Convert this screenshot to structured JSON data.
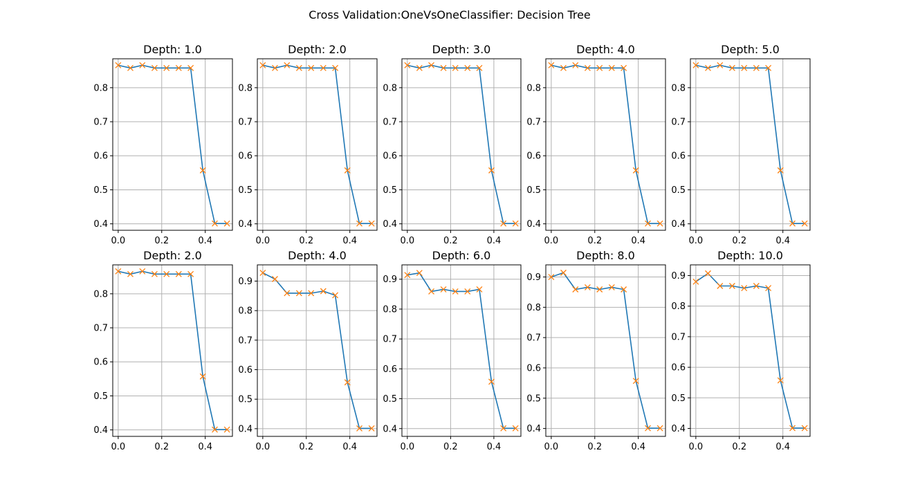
{
  "figure": {
    "title": "Cross Validation:OneVsOneClassifier: Decision Tree",
    "line_color": "#1f77b4",
    "marker_color": "#ff7f0e",
    "marker": "x",
    "grid_color": "#b0b0b0"
  },
  "chart_data": [
    {
      "type": "line",
      "title": "Depth: 1.0",
      "grid": true,
      "xlim": [
        -0.025,
        0.525
      ],
      "ylim": [
        0.381,
        0.885
      ],
      "xticks": [
        0.0,
        0.2,
        0.4
      ],
      "xtick_labels": [
        "0.0",
        "0.2",
        "0.4"
      ],
      "yticks": [
        0.4,
        0.5,
        0.6,
        0.7,
        0.8
      ],
      "ytick_labels": [
        "0.4",
        "0.5",
        "0.6",
        "0.7",
        "0.8"
      ],
      "x": [
        0.0,
        0.056,
        0.111,
        0.167,
        0.222,
        0.278,
        0.333,
        0.389,
        0.444,
        0.5
      ],
      "y": [
        0.866,
        0.858,
        0.866,
        0.858,
        0.858,
        0.858,
        0.858,
        0.557,
        0.401,
        0.401
      ]
    },
    {
      "type": "line",
      "title": "Depth: 2.0",
      "grid": true,
      "xlim": [
        -0.025,
        0.525
      ],
      "ylim": [
        0.381,
        0.885
      ],
      "xticks": [
        0.0,
        0.2,
        0.4
      ],
      "xtick_labels": [
        "0.0",
        "0.2",
        "0.4"
      ],
      "yticks": [
        0.4,
        0.5,
        0.6,
        0.7,
        0.8
      ],
      "ytick_labels": [
        "0.4",
        "0.5",
        "0.6",
        "0.7",
        "0.8"
      ],
      "x": [
        0.0,
        0.056,
        0.111,
        0.167,
        0.222,
        0.278,
        0.333,
        0.389,
        0.444,
        0.5
      ],
      "y": [
        0.866,
        0.858,
        0.866,
        0.858,
        0.858,
        0.858,
        0.858,
        0.557,
        0.401,
        0.401
      ]
    },
    {
      "type": "line",
      "title": "Depth: 3.0",
      "grid": true,
      "xlim": [
        -0.025,
        0.525
      ],
      "ylim": [
        0.381,
        0.885
      ],
      "xticks": [
        0.0,
        0.2,
        0.4
      ],
      "xtick_labels": [
        "0.0",
        "0.2",
        "0.4"
      ],
      "yticks": [
        0.4,
        0.5,
        0.6,
        0.7,
        0.8
      ],
      "ytick_labels": [
        "0.4",
        "0.5",
        "0.6",
        "0.7",
        "0.8"
      ],
      "x": [
        0.0,
        0.056,
        0.111,
        0.167,
        0.222,
        0.278,
        0.333,
        0.389,
        0.444,
        0.5
      ],
      "y": [
        0.866,
        0.858,
        0.866,
        0.858,
        0.858,
        0.858,
        0.858,
        0.557,
        0.401,
        0.401
      ]
    },
    {
      "type": "line",
      "title": "Depth: 4.0",
      "grid": true,
      "xlim": [
        -0.025,
        0.525
      ],
      "ylim": [
        0.381,
        0.885
      ],
      "xticks": [
        0.0,
        0.2,
        0.4
      ],
      "xtick_labels": [
        "0.0",
        "0.2",
        "0.4"
      ],
      "yticks": [
        0.4,
        0.5,
        0.6,
        0.7,
        0.8
      ],
      "ytick_labels": [
        "0.4",
        "0.5",
        "0.6",
        "0.7",
        "0.8"
      ],
      "x": [
        0.0,
        0.056,
        0.111,
        0.167,
        0.222,
        0.278,
        0.333,
        0.389,
        0.444,
        0.5
      ],
      "y": [
        0.866,
        0.858,
        0.866,
        0.858,
        0.858,
        0.858,
        0.858,
        0.557,
        0.401,
        0.401
      ]
    },
    {
      "type": "line",
      "title": "Depth: 5.0",
      "grid": true,
      "xlim": [
        -0.025,
        0.525
      ],
      "ylim": [
        0.381,
        0.885
      ],
      "xticks": [
        0.0,
        0.2,
        0.4
      ],
      "xtick_labels": [
        "0.0",
        "0.2",
        "0.4"
      ],
      "yticks": [
        0.4,
        0.5,
        0.6,
        0.7,
        0.8
      ],
      "ytick_labels": [
        "0.4",
        "0.5",
        "0.6",
        "0.7",
        "0.8"
      ],
      "x": [
        0.0,
        0.056,
        0.111,
        0.167,
        0.222,
        0.278,
        0.333,
        0.389,
        0.444,
        0.5
      ],
      "y": [
        0.866,
        0.858,
        0.866,
        0.858,
        0.858,
        0.858,
        0.858,
        0.557,
        0.401,
        0.401
      ]
    },
    {
      "type": "line",
      "title": "Depth: 2.0",
      "grid": true,
      "xlim": [
        -0.025,
        0.525
      ],
      "ylim": [
        0.381,
        0.885
      ],
      "xticks": [
        0.0,
        0.2,
        0.4
      ],
      "xtick_labels": [
        "0.0",
        "0.2",
        "0.4"
      ],
      "yticks": [
        0.4,
        0.5,
        0.6,
        0.7,
        0.8
      ],
      "ytick_labels": [
        "0.4",
        "0.5",
        "0.6",
        "0.7",
        "0.8"
      ],
      "x": [
        0.0,
        0.056,
        0.111,
        0.167,
        0.222,
        0.278,
        0.333,
        0.389,
        0.444,
        0.5
      ],
      "y": [
        0.866,
        0.858,
        0.866,
        0.858,
        0.858,
        0.858,
        0.858,
        0.557,
        0.401,
        0.401
      ]
    },
    {
      "type": "line",
      "title": "Depth: 4.0",
      "grid": true,
      "xlim": [
        -0.025,
        0.525
      ],
      "ylim": [
        0.374,
        0.955
      ],
      "xticks": [
        0.0,
        0.2,
        0.4
      ],
      "xtick_labels": [
        "0.0",
        "0.2",
        "0.4"
      ],
      "yticks": [
        0.4,
        0.5,
        0.6,
        0.7,
        0.8,
        0.9
      ],
      "ytick_labels": [
        "0.4",
        "0.5",
        "0.6",
        "0.7",
        "0.8",
        "0.9"
      ],
      "x": [
        0.0,
        0.056,
        0.111,
        0.167,
        0.222,
        0.278,
        0.333,
        0.389,
        0.444,
        0.5
      ],
      "y": [
        0.928,
        0.907,
        0.859,
        0.859,
        0.859,
        0.866,
        0.852,
        0.557,
        0.401,
        0.401
      ]
    },
    {
      "type": "line",
      "title": "Depth: 6.0",
      "grid": true,
      "xlim": [
        -0.025,
        0.525
      ],
      "ylim": [
        0.374,
        0.948
      ],
      "xticks": [
        0.0,
        0.2,
        0.4
      ],
      "xtick_labels": [
        "0.0",
        "0.2",
        "0.4"
      ],
      "yticks": [
        0.4,
        0.5,
        0.6,
        0.7,
        0.8,
        0.9
      ],
      "ytick_labels": [
        "0.4",
        "0.5",
        "0.6",
        "0.7",
        "0.8",
        "0.9"
      ],
      "x": [
        0.0,
        0.056,
        0.111,
        0.167,
        0.222,
        0.278,
        0.333,
        0.389,
        0.444,
        0.5
      ],
      "y": [
        0.914,
        0.921,
        0.859,
        0.866,
        0.859,
        0.859,
        0.866,
        0.557,
        0.401,
        0.401
      ]
    },
    {
      "type": "line",
      "title": "Depth: 8.0",
      "grid": true,
      "xlim": [
        -0.025,
        0.525
      ],
      "ylim": [
        0.374,
        0.94
      ],
      "xticks": [
        0.0,
        0.2,
        0.4
      ],
      "xtick_labels": [
        "0.0",
        "0.2",
        "0.4"
      ],
      "yticks": [
        0.4,
        0.5,
        0.6,
        0.7,
        0.8,
        0.9
      ],
      "ytick_labels": [
        "0.4",
        "0.5",
        "0.6",
        "0.7",
        "0.8",
        "0.9"
      ],
      "x": [
        0.0,
        0.056,
        0.111,
        0.167,
        0.222,
        0.278,
        0.333,
        0.389,
        0.444,
        0.5
      ],
      "y": [
        0.9,
        0.914,
        0.859,
        0.866,
        0.859,
        0.866,
        0.859,
        0.557,
        0.401,
        0.401
      ]
    },
    {
      "type": "line",
      "title": "Depth: 10.0",
      "grid": true,
      "xlim": [
        -0.025,
        0.525
      ],
      "ylim": [
        0.374,
        0.935
      ],
      "xticks": [
        0.0,
        0.2,
        0.4
      ],
      "xtick_labels": [
        "0.0",
        "0.2",
        "0.4"
      ],
      "yticks": [
        0.4,
        0.5,
        0.6,
        0.7,
        0.8,
        0.9
      ],
      "ytick_labels": [
        "0.4",
        "0.5",
        "0.6",
        "0.7",
        "0.8",
        "0.9"
      ],
      "x": [
        0.0,
        0.056,
        0.111,
        0.167,
        0.222,
        0.278,
        0.333,
        0.389,
        0.444,
        0.5
      ],
      "y": [
        0.88,
        0.907,
        0.866,
        0.866,
        0.859,
        0.866,
        0.859,
        0.557,
        0.401,
        0.401
      ]
    }
  ]
}
